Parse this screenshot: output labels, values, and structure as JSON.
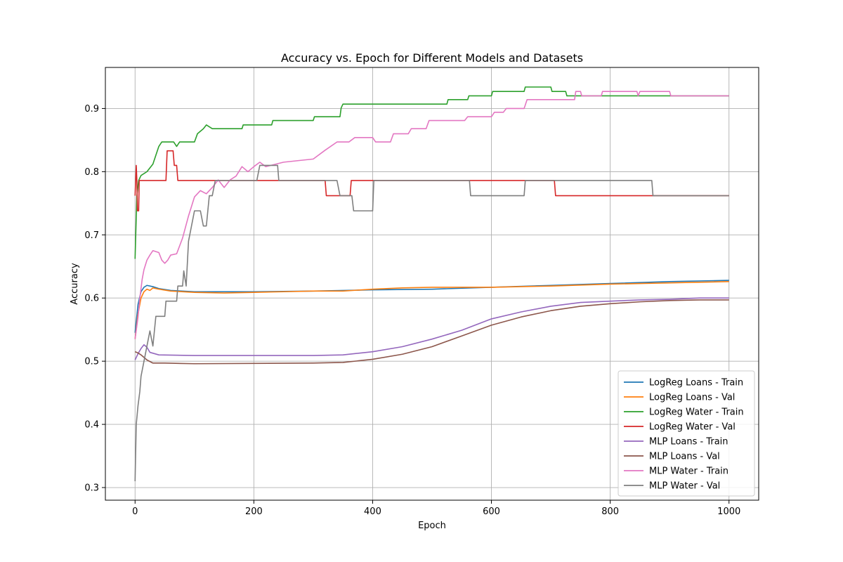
{
  "chart_data": {
    "type": "line",
    "title": "Accuracy vs. Epoch for Different Models and Datasets",
    "xlabel": "Epoch",
    "ylabel": "Accuracy",
    "xlim": [
      -50,
      1050
    ],
    "ylim": [
      0.28,
      0.965
    ],
    "xticks": [
      0,
      200,
      400,
      600,
      800,
      1000
    ],
    "yticks": [
      0.3,
      0.4,
      0.5,
      0.6,
      0.7,
      0.8,
      0.9
    ],
    "grid": true,
    "legend_position": "lower-right",
    "series": [
      {
        "name": "LogReg Loans - Train",
        "color": "#1f77b4",
        "points": [
          [
            0,
            0.545
          ],
          [
            5,
            0.59
          ],
          [
            10,
            0.61
          ],
          [
            15,
            0.617
          ],
          [
            20,
            0.62
          ],
          [
            30,
            0.618
          ],
          [
            40,
            0.615
          ],
          [
            60,
            0.612
          ],
          [
            100,
            0.61
          ],
          [
            200,
            0.61
          ],
          [
            300,
            0.611
          ],
          [
            400,
            0.613
          ],
          [
            500,
            0.614
          ],
          [
            600,
            0.617
          ],
          [
            700,
            0.62
          ],
          [
            800,
            0.623
          ],
          [
            900,
            0.626
          ],
          [
            1000,
            0.628
          ]
        ]
      },
      {
        "name": "LogReg Loans - Val",
        "color": "#ff7f0e",
        "points": [
          [
            0,
            0.535
          ],
          [
            5,
            0.575
          ],
          [
            10,
            0.6
          ],
          [
            15,
            0.61
          ],
          [
            20,
            0.614
          ],
          [
            25,
            0.612
          ],
          [
            30,
            0.616
          ],
          [
            40,
            0.614
          ],
          [
            60,
            0.611
          ],
          [
            100,
            0.609
          ],
          [
            150,
            0.608
          ],
          [
            200,
            0.609
          ],
          [
            250,
            0.61
          ],
          [
            300,
            0.611
          ],
          [
            350,
            0.611
          ],
          [
            400,
            0.614
          ],
          [
            450,
            0.616
          ],
          [
            500,
            0.617
          ],
          [
            550,
            0.617
          ],
          [
            600,
            0.617
          ],
          [
            700,
            0.619
          ],
          [
            800,
            0.622
          ],
          [
            900,
            0.624
          ],
          [
            1000,
            0.626
          ]
        ]
      },
      {
        "name": "LogReg Water - Train",
        "color": "#2ca02c",
        "points": [
          [
            0,
            0.662
          ],
          [
            3,
            0.762
          ],
          [
            6,
            0.786
          ],
          [
            10,
            0.794
          ],
          [
            20,
            0.8
          ],
          [
            25,
            0.806
          ],
          [
            30,
            0.812
          ],
          [
            35,
            0.826
          ],
          [
            40,
            0.84
          ],
          [
            45,
            0.847
          ],
          [
            65,
            0.847
          ],
          [
            70,
            0.84
          ],
          [
            75,
            0.847
          ],
          [
            100,
            0.847
          ],
          [
            105,
            0.86
          ],
          [
            115,
            0.868
          ],
          [
            120,
            0.874
          ],
          [
            130,
            0.868
          ],
          [
            180,
            0.868
          ],
          [
            182,
            0.874
          ],
          [
            230,
            0.874
          ],
          [
            232,
            0.881
          ],
          [
            300,
            0.881
          ],
          [
            302,
            0.887
          ],
          [
            345,
            0.887
          ],
          [
            347,
            0.901
          ],
          [
            350,
            0.907
          ],
          [
            525,
            0.907
          ],
          [
            527,
            0.914
          ],
          [
            560,
            0.914
          ],
          [
            562,
            0.92
          ],
          [
            600,
            0.92
          ],
          [
            602,
            0.927
          ],
          [
            655,
            0.927
          ],
          [
            657,
            0.934
          ],
          [
            700,
            0.934
          ],
          [
            702,
            0.927
          ],
          [
            725,
            0.927
          ],
          [
            727,
            0.92
          ],
          [
            1000,
            0.92
          ]
        ]
      },
      {
        "name": "LogReg Water - Val",
        "color": "#d62728",
        "points": [
          [
            0,
            0.762
          ],
          [
            2,
            0.81
          ],
          [
            3,
            0.786
          ],
          [
            4,
            0.738
          ],
          [
            6,
            0.738
          ],
          [
            7,
            0.786
          ],
          [
            52,
            0.786
          ],
          [
            54,
            0.833
          ],
          [
            64,
            0.833
          ],
          [
            66,
            0.81
          ],
          [
            70,
            0.81
          ],
          [
            72,
            0.786
          ],
          [
            320,
            0.786
          ],
          [
            322,
            0.762
          ],
          [
            362,
            0.762
          ],
          [
            364,
            0.786
          ],
          [
            706,
            0.786
          ],
          [
            708,
            0.762
          ],
          [
            1000,
            0.762
          ]
        ]
      },
      {
        "name": "MLP Loans - Train",
        "color": "#9467bd",
        "points": [
          [
            0,
            0.502
          ],
          [
            5,
            0.512
          ],
          [
            10,
            0.52
          ],
          [
            15,
            0.526
          ],
          [
            20,
            0.522
          ],
          [
            25,
            0.514
          ],
          [
            40,
            0.51
          ],
          [
            100,
            0.509
          ],
          [
            300,
            0.509
          ],
          [
            350,
            0.51
          ],
          [
            400,
            0.515
          ],
          [
            450,
            0.523
          ],
          [
            500,
            0.535
          ],
          [
            550,
            0.549
          ],
          [
            600,
            0.567
          ],
          [
            650,
            0.578
          ],
          [
            700,
            0.587
          ],
          [
            750,
            0.593
          ],
          [
            800,
            0.595
          ],
          [
            850,
            0.597
          ],
          [
            900,
            0.598
          ],
          [
            950,
            0.6
          ],
          [
            1000,
            0.6
          ]
        ]
      },
      {
        "name": "MLP Loans - Val",
        "color": "#8c564b",
        "points": [
          [
            0,
            0.515
          ],
          [
            5,
            0.513
          ],
          [
            10,
            0.51
          ],
          [
            15,
            0.506
          ],
          [
            20,
            0.502
          ],
          [
            30,
            0.497
          ],
          [
            50,
            0.497
          ],
          [
            100,
            0.496
          ],
          [
            300,
            0.497
          ],
          [
            350,
            0.498
          ],
          [
            400,
            0.503
          ],
          [
            450,
            0.511
          ],
          [
            500,
            0.523
          ],
          [
            550,
            0.54
          ],
          [
            600,
            0.557
          ],
          [
            650,
            0.57
          ],
          [
            700,
            0.58
          ],
          [
            750,
            0.587
          ],
          [
            800,
            0.591
          ],
          [
            850,
            0.594
          ],
          [
            900,
            0.596
          ],
          [
            950,
            0.597
          ],
          [
            1000,
            0.597
          ]
        ]
      },
      {
        "name": "MLP Water - Train",
        "color": "#e377c2",
        "points": [
          [
            0,
            0.535
          ],
          [
            5,
            0.57
          ],
          [
            8,
            0.6
          ],
          [
            12,
            0.63
          ],
          [
            15,
            0.645
          ],
          [
            20,
            0.66
          ],
          [
            25,
            0.668
          ],
          [
            30,
            0.675
          ],
          [
            40,
            0.672
          ],
          [
            45,
            0.66
          ],
          [
            50,
            0.655
          ],
          [
            55,
            0.66
          ],
          [
            60,
            0.668
          ],
          [
            70,
            0.67
          ],
          [
            80,
            0.695
          ],
          [
            90,
            0.73
          ],
          [
            100,
            0.76
          ],
          [
            110,
            0.77
          ],
          [
            120,
            0.765
          ],
          [
            130,
            0.775
          ],
          [
            140,
            0.787
          ],
          [
            150,
            0.775
          ],
          [
            160,
            0.787
          ],
          [
            170,
            0.793
          ],
          [
            180,
            0.808
          ],
          [
            190,
            0.8
          ],
          [
            200,
            0.808
          ],
          [
            210,
            0.815
          ],
          [
            220,
            0.808
          ],
          [
            250,
            0.815
          ],
          [
            300,
            0.82
          ],
          [
            320,
            0.834
          ],
          [
            340,
            0.847
          ],
          [
            360,
            0.847
          ],
          [
            370,
            0.854
          ],
          [
            400,
            0.854
          ],
          [
            405,
            0.847
          ],
          [
            430,
            0.847
          ],
          [
            435,
            0.86
          ],
          [
            460,
            0.86
          ],
          [
            465,
            0.868
          ],
          [
            490,
            0.868
          ],
          [
            495,
            0.881
          ],
          [
            555,
            0.881
          ],
          [
            560,
            0.887
          ],
          [
            600,
            0.887
          ],
          [
            605,
            0.894
          ],
          [
            620,
            0.894
          ],
          [
            625,
            0.9
          ],
          [
            655,
            0.9
          ],
          [
            660,
            0.914
          ],
          [
            740,
            0.914
          ],
          [
            742,
            0.927
          ],
          [
            750,
            0.927
          ],
          [
            752,
            0.92
          ],
          [
            785,
            0.92
          ],
          [
            787,
            0.927
          ],
          [
            845,
            0.927
          ],
          [
            847,
            0.92
          ],
          [
            850,
            0.927
          ],
          [
            900,
            0.927
          ],
          [
            902,
            0.92
          ],
          [
            1000,
            0.92
          ]
        ]
      },
      {
        "name": "MLP Water - Val",
        "color": "#7f7f7f",
        "points": [
          [
            0,
            0.31
          ],
          [
            2,
            0.4
          ],
          [
            5,
            0.43
          ],
          [
            8,
            0.452
          ],
          [
            10,
            0.476
          ],
          [
            15,
            0.5
          ],
          [
            20,
            0.524
          ],
          [
            25,
            0.548
          ],
          [
            30,
            0.524
          ],
          [
            35,
            0.571
          ],
          [
            50,
            0.571
          ],
          [
            52,
            0.595
          ],
          [
            70,
            0.595
          ],
          [
            72,
            0.619
          ],
          [
            80,
            0.619
          ],
          [
            82,
            0.643
          ],
          [
            86,
            0.619
          ],
          [
            90,
            0.69
          ],
          [
            95,
            0.714
          ],
          [
            100,
            0.738
          ],
          [
            110,
            0.738
          ],
          [
            115,
            0.714
          ],
          [
            120,
            0.714
          ],
          [
            125,
            0.762
          ],
          [
            130,
            0.762
          ],
          [
            135,
            0.786
          ],
          [
            140,
            0.786
          ],
          [
            150,
            0.786
          ],
          [
            175,
            0.786
          ],
          [
            180,
            0.786
          ],
          [
            205,
            0.786
          ],
          [
            210,
            0.81
          ],
          [
            240,
            0.81
          ],
          [
            242,
            0.786
          ],
          [
            340,
            0.786
          ],
          [
            345,
            0.762
          ],
          [
            365,
            0.762
          ],
          [
            368,
            0.738
          ],
          [
            400,
            0.738
          ],
          [
            402,
            0.786
          ],
          [
            563,
            0.786
          ],
          [
            565,
            0.762
          ],
          [
            655,
            0.762
          ],
          [
            657,
            0.786
          ],
          [
            870,
            0.786
          ],
          [
            872,
            0.762
          ],
          [
            1000,
            0.762
          ]
        ]
      }
    ]
  }
}
